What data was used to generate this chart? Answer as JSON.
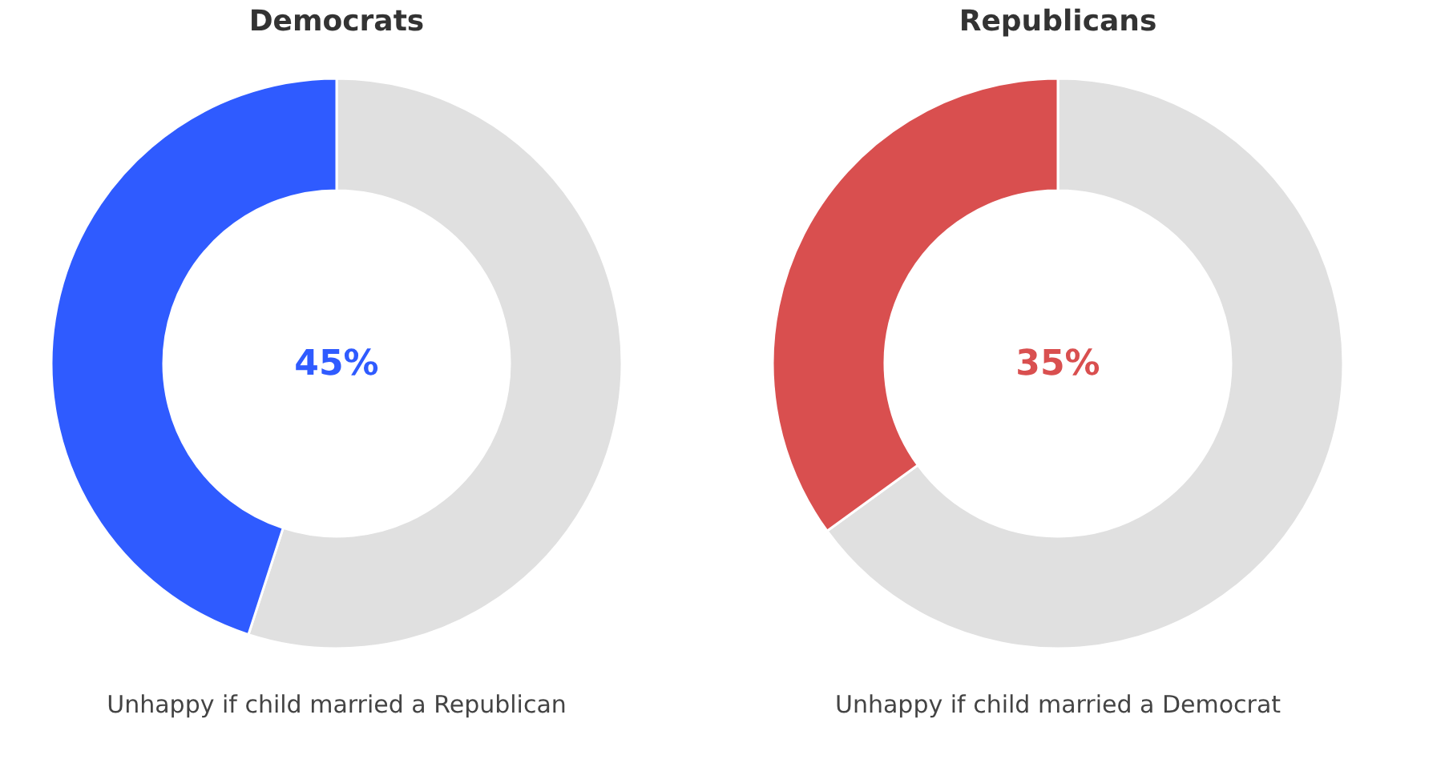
{
  "chart_data": [
    {
      "type": "donut",
      "title": "Democrats",
      "categories": [
        null,
        null
      ],
      "values": [
        55,
        45
      ],
      "colors": [
        "#e0e0e0",
        "#2f5bff"
      ],
      "legend": false,
      "annotations": [
        "45%",
        "Unhappy if child married a Republican"
      ]
    },
    {
      "type": "donut",
      "title": "Republicans",
      "categories": [
        null,
        null
      ],
      "values": [
        65,
        35
      ],
      "colors": [
        "#e0e0e0",
        "#d94f4f"
      ],
      "legend": false,
      "annotations": [
        "35%",
        "Unhappy if child married a Democrat"
      ]
    }
  ]
}
